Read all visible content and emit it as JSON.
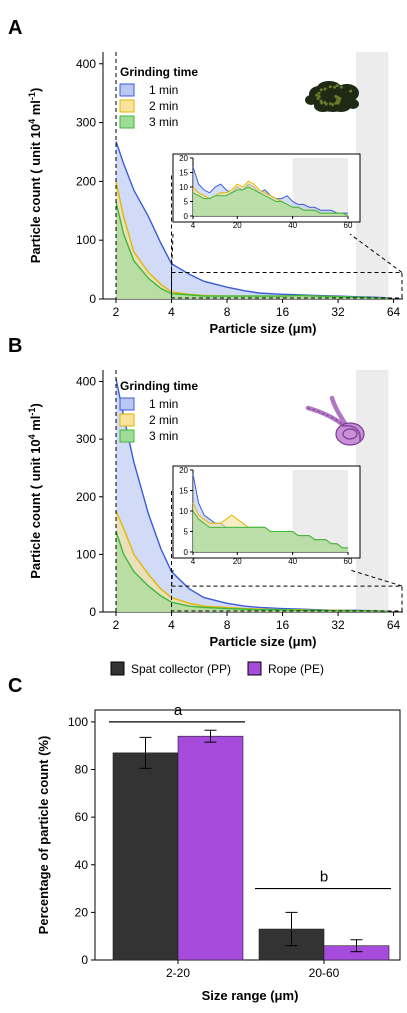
{
  "figure": {
    "panels": [
      "A",
      "B",
      "C"
    ]
  },
  "colors": {
    "line_1min": "#3b5bdb",
    "fill_1min": "#b8c8f2",
    "line_2min": "#e0b800",
    "fill_2min": "#f7e39c",
    "line_3min": "#3cb93c",
    "fill_3min": "#9fdc97",
    "highlight": "#ececec",
    "bar_pp": "#333333",
    "bar_pe": "#a64bdb"
  },
  "chart_data": [
    {
      "id": "A",
      "type": "area",
      "xlabel": "Particle size (μm)",
      "ylabel_prefix": "Particle count ( unit 10",
      "ylabel_sup": "4",
      "ylabel_unit": " ml",
      "ylabel_sup2": "-1",
      "ylabel_suffix": ")",
      "x_scale": "log2",
      "x_ticks": [
        2,
        4,
        8,
        16,
        32,
        64
      ],
      "ylim": [
        0,
        420
      ],
      "y_ticks": [
        0,
        100,
        200,
        300,
        400
      ],
      "vline": 2,
      "shaded_range": [
        40,
        60
      ],
      "legend": {
        "title": "Grinding time",
        "position": "top-left",
        "entries": [
          "1 min",
          "2 min",
          "3 min"
        ]
      },
      "image_icon": "moss-clump-icon",
      "x": [
        2,
        2.2,
        2.5,
        3,
        3.5,
        4,
        5,
        6,
        8,
        10,
        12,
        16,
        20,
        24,
        32,
        40,
        50,
        60
      ],
      "series": [
        {
          "name": "1 min",
          "values": [
            268,
            230,
            185,
            140,
            95,
            60,
            42,
            30,
            20,
            14,
            10,
            8,
            7,
            6,
            5,
            4,
            3,
            2
          ]
        },
        {
          "name": "2 min",
          "values": [
            200,
            140,
            80,
            45,
            25,
            12,
            8,
            6,
            5,
            5,
            5,
            5,
            6,
            5,
            4,
            3,
            2,
            1
          ]
        },
        {
          "name": "3 min",
          "values": [
            165,
            110,
            65,
            35,
            18,
            9,
            7,
            5,
            5,
            5,
            5,
            5,
            6,
            5,
            4,
            3,
            2,
            1
          ]
        }
      ],
      "inset": {
        "x_ticks": [
          4,
          20,
          40,
          60
        ],
        "y_ticks": [
          0,
          5,
          10,
          15,
          20
        ],
        "xlim": [
          4,
          60
        ],
        "ylim": [
          0,
          20
        ],
        "shaded_range": [
          40,
          60
        ],
        "x": [
          4,
          6,
          8,
          10,
          12,
          14,
          16,
          18,
          20,
          22,
          24,
          26,
          28,
          30,
          32,
          34,
          36,
          38,
          40,
          42,
          44,
          46,
          48,
          50,
          52,
          54,
          56,
          58,
          60
        ],
        "series": [
          {
            "name": "1 min",
            "values": [
              17,
              11,
              9,
              8,
              10,
              11,
              9,
              8,
              10,
              9,
              11,
              10,
              8,
              9,
              7,
              6,
              6,
              7,
              5,
              4,
              4,
              3,
              3,
              2,
              2,
              2,
              1,
              1,
              1
            ]
          },
          {
            "name": "2 min",
            "values": [
              10,
              8,
              7,
              6,
              7,
              8,
              8,
              9,
              11,
              10,
              12,
              11,
              9,
              8,
              7,
              6,
              5,
              4,
              3,
              3,
              2,
              2,
              2,
              1,
              1,
              1,
              1,
              1,
              0
            ]
          },
          {
            "name": "3 min",
            "values": [
              8,
              7,
              6,
              6,
              7,
              7,
              7,
              8,
              9,
              9,
              10,
              9,
              8,
              7,
              6,
              5,
              5,
              4,
              3,
              3,
              2,
              2,
              2,
              1,
              1,
              1,
              1,
              1,
              0
            ]
          }
        ]
      }
    },
    {
      "id": "B",
      "type": "area",
      "xlabel": "Particle size (μm)",
      "ylabel_prefix": "Particle count ( unit 10",
      "ylabel_sup": "4",
      "ylabel_unit": " ml",
      "ylabel_sup2": "-1",
      "ylabel_suffix": ")",
      "x_scale": "log2",
      "x_ticks": [
        2,
        4,
        8,
        16,
        32,
        64
      ],
      "ylim": [
        0,
        420
      ],
      "y_ticks": [
        0,
        100,
        200,
        300,
        400
      ],
      "vline": 2,
      "shaded_range": [
        40,
        60
      ],
      "legend": {
        "title": "Grinding time",
        "position": "top-left",
        "entries": [
          "1 min",
          "2 min",
          "3 min"
        ]
      },
      "image_icon": "knotted-rope-icon",
      "x": [
        2,
        2.2,
        2.5,
        3,
        3.5,
        4,
        5,
        6,
        8,
        10,
        12,
        16,
        20,
        24,
        32,
        40,
        50,
        60
      ],
      "series": [
        {
          "name": "1 min",
          "values": [
            405,
            340,
            260,
            170,
            110,
            70,
            40,
            25,
            15,
            10,
            8,
            6,
            5,
            4,
            3,
            3,
            2,
            1
          ]
        },
        {
          "name": "2 min",
          "values": [
            175,
            145,
            100,
            65,
            40,
            25,
            15,
            10,
            8,
            6,
            5,
            4,
            4,
            3,
            3,
            2,
            2,
            1
          ]
        },
        {
          "name": "3 min",
          "values": [
            140,
            100,
            70,
            45,
            28,
            17,
            10,
            8,
            6,
            5,
            4,
            4,
            3,
            3,
            2,
            2,
            2,
            1
          ]
        }
      ],
      "inset": {
        "x_ticks": [
          4,
          20,
          40,
          60
        ],
        "y_ticks": [
          0,
          5,
          10,
          15,
          20
        ],
        "xlim": [
          4,
          60
        ],
        "ylim": [
          0,
          20
        ],
        "shaded_range": [
          40,
          60
        ],
        "x": [
          4,
          6,
          8,
          10,
          12,
          14,
          16,
          18,
          20,
          22,
          24,
          26,
          28,
          30,
          32,
          34,
          36,
          38,
          40,
          42,
          44,
          46,
          48,
          50,
          52,
          54,
          56,
          58,
          60
        ],
        "series": [
          {
            "name": "1 min",
            "values": [
              19,
              12,
              9,
              8,
              7,
              7,
              6,
              6,
              6,
              6,
              6,
              6,
              6,
              6,
              5,
              5,
              5,
              5,
              5,
              4,
              4,
              4,
              3,
              3,
              3,
              2,
              2,
              1,
              1
            ]
          },
          {
            "name": "2 min",
            "values": [
              12,
              9,
              8,
              7,
              7,
              7,
              8,
              9,
              8,
              7,
              6,
              6,
              6,
              6,
              5,
              5,
              5,
              5,
              5,
              4,
              4,
              4,
              3,
              3,
              3,
              2,
              2,
              1,
              1
            ]
          },
          {
            "name": "3 min",
            "values": [
              10,
              8,
              7,
              6,
              6,
              6,
              6,
              6,
              6,
              6,
              6,
              6,
              6,
              6,
              5,
              5,
              5,
              5,
              5,
              4,
              4,
              4,
              3,
              3,
              3,
              2,
              2,
              1,
              1
            ]
          }
        ]
      }
    },
    {
      "id": "C",
      "type": "bar",
      "xlabel": "Size range (μm)",
      "ylabel": "Percentage of particle count (%)",
      "ylim": [
        0,
        105
      ],
      "y_ticks": [
        0,
        20,
        40,
        60,
        80,
        100
      ],
      "categories": [
        "2-20",
        "20-60"
      ],
      "legend": {
        "position": "top",
        "entries": [
          "Spat collector (PP)",
          "Rope (PE)"
        ]
      },
      "series": [
        {
          "name": "Spat collector (PP)",
          "values": [
            87,
            13
          ],
          "errors": [
            6.5,
            7
          ]
        },
        {
          "name": "Rope (PE)",
          "values": [
            94,
            6
          ],
          "errors": [
            2.5,
            2.5
          ]
        }
      ],
      "significance": [
        {
          "label": "a",
          "y": 100
        },
        {
          "label": "b",
          "y": 30
        }
      ]
    }
  ]
}
